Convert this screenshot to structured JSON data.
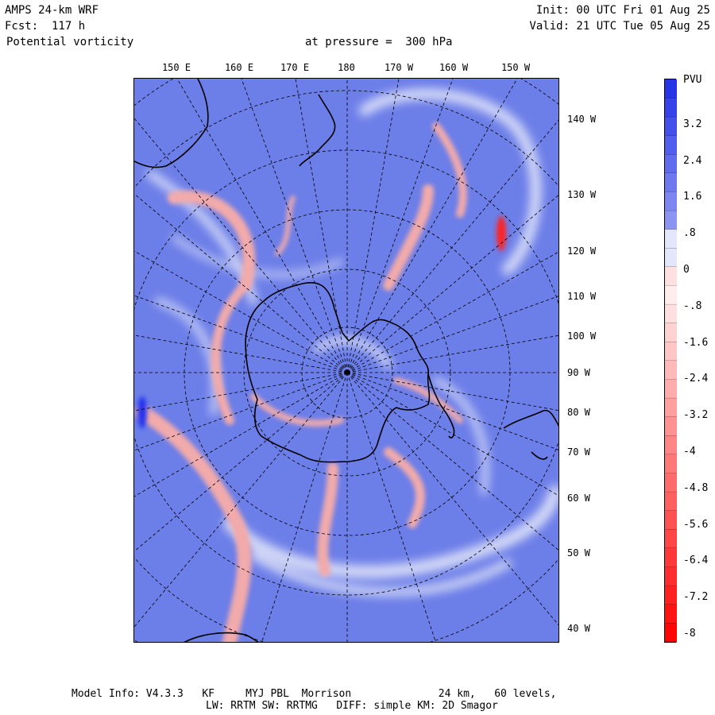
{
  "header": {
    "model": "AMPS 24-km WRF",
    "forecast": "Fcst:  117 h",
    "field": "Potential vorticity",
    "level": "at pressure =  300 hPa",
    "init": "Init: 00 UTC Fri 01 Aug 25",
    "valid": "Valid: 21 UTC Tue 05 Aug 25"
  },
  "top_labels": [
    "150 E",
    "160 E",
    "170 E",
    "180",
    "170 W",
    "160 W",
    "150 W"
  ],
  "right_labels": [
    "140 W",
    "130 W",
    "120 W",
    "110 W",
    "100 W",
    "90 W",
    "80 W",
    "70 W",
    "60 W",
    "50 W",
    "40 W"
  ],
  "colorbar": {
    "unit": "PVU",
    "tick_labels": [
      "3.2",
      "2.4",
      "1.6",
      ".8",
      "0",
      "-.8",
      "-1.6",
      "-2.4",
      "-3.2",
      "-4",
      "-4.8",
      "-5.6",
      "-6.4",
      "-7.2",
      "-8"
    ],
    "range": [
      -8,
      4
    ],
    "interval": 0.4,
    "color_high": "#1f2fe6",
    "color_zero": "#ffffff",
    "color_low": "#ff0000"
  },
  "colors": {
    "background_field": "#6c7ee8",
    "positive_anomaly": "#f0a6a6",
    "coastline": "#000000",
    "graticule": "#000000"
  },
  "footer": {
    "line1": "Model Info: V4.3.3   KF     MYJ PBL  Morrison              24 km,   60 levels,",
    "line2": "LW: RRTM SW: RRTMG   DIFF: simple KM: 2D Smagor"
  }
}
